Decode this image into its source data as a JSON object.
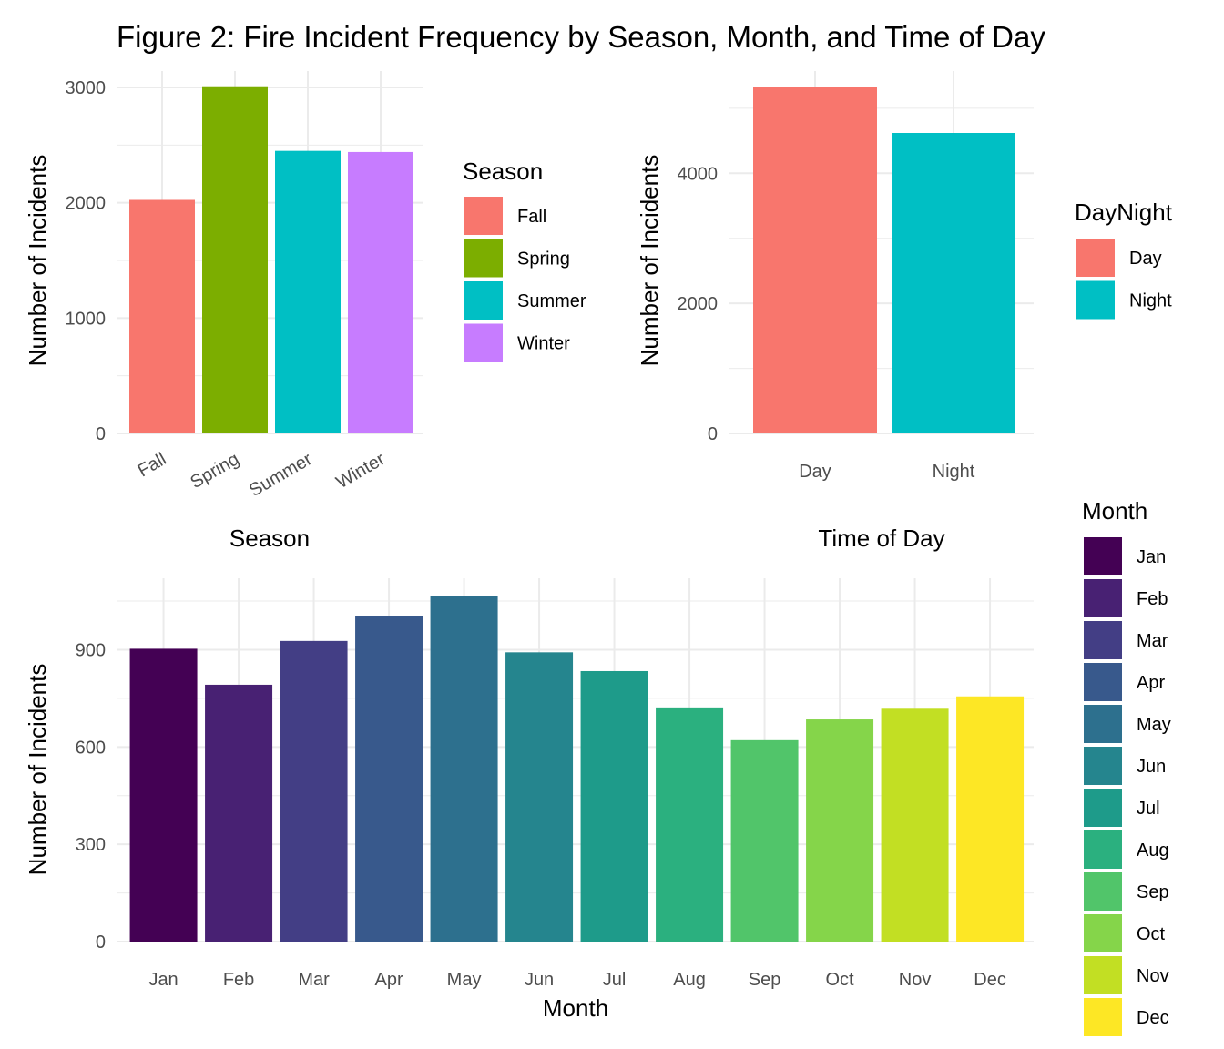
{
  "title": "Figure 2: Fire Incident Frequency by Season, Month, and Time of Day",
  "chart_data": [
    {
      "type": "bar",
      "categories": [
        "Fall",
        "Spring",
        "Summer",
        "Winter"
      ],
      "values": [
        2025,
        3010,
        2450,
        2440
      ],
      "colors": [
        "#F8766D",
        "#7CAE00",
        "#00BFC4",
        "#C77CFF"
      ],
      "xlabel": "Season",
      "ylabel": "Number of Incidents",
      "ylim": [
        0,
        3000
      ],
      "yticks": [
        0,
        1000,
        2000,
        3000
      ],
      "grid": true,
      "legend": {
        "title": "Season",
        "placement": "right",
        "items": [
          "Fall",
          "Spring",
          "Summer",
          "Winter"
        ]
      }
    },
    {
      "type": "bar",
      "categories": [
        "Day",
        "Night"
      ],
      "values": [
        5320,
        4620
      ],
      "colors": [
        "#F8766D",
        "#00BFC4"
      ],
      "xlabel": "Time of Day",
      "ylabel": "Number of Incidents",
      "ylim": [
        0,
        5320
      ],
      "yticks": [
        0,
        2000,
        4000
      ],
      "grid": true,
      "legend": {
        "title": "DayNight",
        "placement": "right",
        "items": [
          "Day",
          "Night"
        ]
      }
    },
    {
      "type": "bar",
      "categories": [
        "Jan",
        "Feb",
        "Mar",
        "Apr",
        "May",
        "Jun",
        "Jul",
        "Aug",
        "Sep",
        "Oct",
        "Nov",
        "Dec"
      ],
      "values": [
        903,
        792,
        927,
        1003,
        1067,
        892,
        834,
        722,
        621,
        685,
        718,
        756
      ],
      "colors": [
        "#440154",
        "#482173",
        "#433E85",
        "#38598C",
        "#2D708E",
        "#25858E",
        "#1E9B8A",
        "#2BB07F",
        "#51C56A",
        "#85D54A",
        "#C2DF23",
        "#FDE725"
      ],
      "xlabel": "Month",
      "ylabel": "Number of Incidents",
      "ylim": [
        0,
        1067
      ],
      "yticks": [
        0,
        300,
        600,
        900
      ],
      "grid": true,
      "legend": {
        "title": "Month",
        "placement": "right",
        "items": [
          "Jan",
          "Feb",
          "Mar",
          "Apr",
          "May",
          "Jun",
          "Jul",
          "Aug",
          "Sep",
          "Oct",
          "Nov",
          "Dec"
        ]
      }
    }
  ]
}
